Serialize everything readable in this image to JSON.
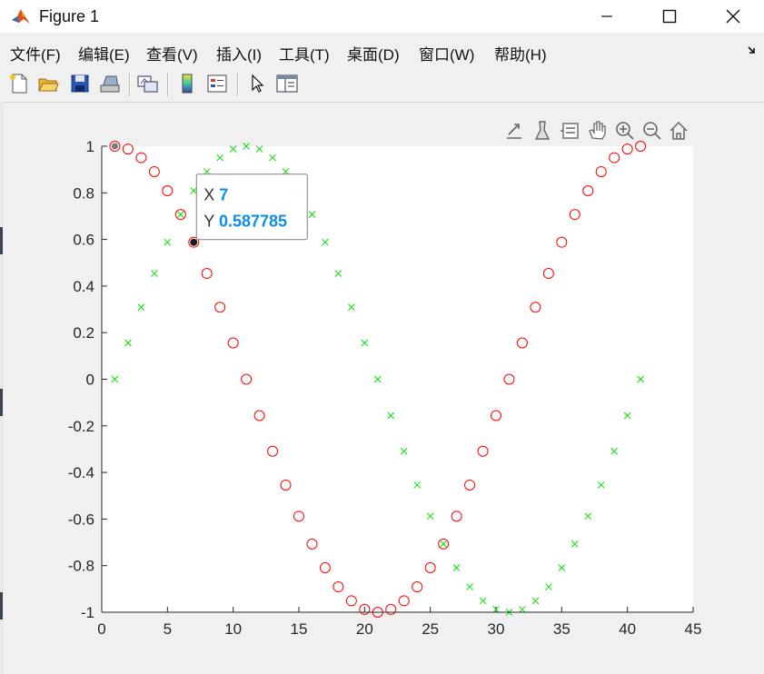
{
  "window": {
    "title": "Figure 1",
    "app_icon": "matlab-logo-icon",
    "controls": [
      "minimize-icon",
      "maximize-icon",
      "close-icon"
    ]
  },
  "menubar": {
    "items": [
      "文件(F)",
      "编辑(E)",
      "查看(V)",
      "插入(I)",
      "工具(T)",
      "桌面(D)",
      "窗口(W)",
      "帮助(H)"
    ],
    "dock_icon": "dock-arrow-icon"
  },
  "toolbar": {
    "buttons": [
      {
        "name": "new-figure-button",
        "icon": "new-file-icon"
      },
      {
        "name": "open-file-button",
        "icon": "open-folder-icon"
      },
      {
        "name": "save-figure-button",
        "icon": "save-disk-icon"
      },
      {
        "name": "print-figure-button",
        "icon": "printer-icon"
      },
      {
        "name": "link-plot-button",
        "icon": "link-plot-icon"
      },
      {
        "name": "insert-colorbar-button",
        "icon": "colorbar-icon"
      },
      {
        "name": "insert-legend-button",
        "icon": "legend-icon"
      },
      {
        "name": "edit-plot-button",
        "icon": "pointer-arrow-icon"
      },
      {
        "name": "property-inspector-button",
        "icon": "property-panel-icon"
      }
    ]
  },
  "axes_toolbar": {
    "buttons": [
      "export-icon",
      "brush-icon",
      "datatip-icon",
      "pan-hand-icon",
      "zoom-in-icon",
      "zoom-out-icon",
      "home-icon"
    ]
  },
  "datatip": {
    "x_label": "X",
    "x_value": "7",
    "y_label": "Y",
    "y_value": "0.587785",
    "value_color": "#0b8ee8"
  },
  "chart_data": {
    "type": "scatter",
    "xlim": [
      0,
      45
    ],
    "ylim": [
      -1,
      1
    ],
    "x_ticks": [
      "0",
      "5",
      "10",
      "15",
      "20",
      "25",
      "30",
      "35",
      "40",
      "45"
    ],
    "y_ticks": [
      "1",
      "0.8",
      "0.6",
      "0.4",
      "0.2",
      "0",
      "-0.2",
      "-0.4",
      "-0.6",
      "-0.8",
      "-1"
    ],
    "grid": false,
    "series": [
      {
        "marker": "circle",
        "color": "#ff0000",
        "x": [
          1,
          2,
          3,
          4,
          5,
          6,
          7,
          8,
          9,
          10,
          11,
          12,
          13,
          14,
          15,
          16,
          17,
          18,
          19,
          20,
          21,
          22,
          23,
          24,
          25,
          26,
          27,
          28,
          29,
          30,
          31,
          32,
          33,
          34,
          35,
          36,
          37,
          38,
          39,
          40,
          41
        ],
        "y": [
          1,
          0.988,
          0.951,
          0.891,
          0.809,
          0.707,
          0.588,
          0.454,
          0.309,
          0.156,
          0,
          -0.156,
          -0.309,
          -0.454,
          -0.588,
          -0.707,
          -0.809,
          -0.891,
          -0.951,
          -0.988,
          -1,
          -0.988,
          -0.951,
          -0.891,
          -0.809,
          -0.707,
          -0.588,
          -0.454,
          -0.309,
          -0.156,
          0,
          0.156,
          0.309,
          0.454,
          0.588,
          0.707,
          0.809,
          0.891,
          0.951,
          0.988,
          1
        ]
      },
      {
        "marker": "x",
        "color": "#00e000",
        "x": [
          1,
          2,
          3,
          4,
          5,
          6,
          7,
          8,
          9,
          10,
          11,
          12,
          13,
          14,
          15,
          16,
          17,
          18,
          19,
          20,
          21,
          22,
          23,
          24,
          25,
          26,
          27,
          28,
          29,
          30,
          31,
          32,
          33,
          34,
          35,
          36,
          37,
          38,
          39,
          40,
          41
        ],
        "y": [
          0,
          0.156,
          0.309,
          0.454,
          0.588,
          0.707,
          0.809,
          0.891,
          0.951,
          0.988,
          1,
          0.988,
          0.951,
          0.891,
          0.809,
          0.707,
          0.588,
          0.454,
          0.309,
          0.156,
          0,
          -0.156,
          -0.309,
          -0.454,
          -0.588,
          -0.707,
          -0.809,
          -0.891,
          -0.951,
          -0.988,
          -1,
          -0.988,
          -0.951,
          -0.891,
          -0.809,
          -0.707,
          -0.588,
          -0.454,
          -0.309,
          -0.156,
          0
        ]
      }
    ],
    "selected_point": {
      "x": 7,
      "y": 0.587785
    }
  }
}
